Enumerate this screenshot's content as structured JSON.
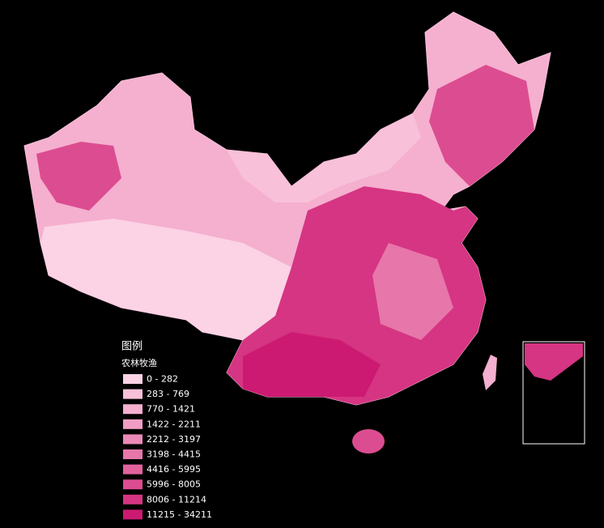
{
  "legend": {
    "title": "图例",
    "subtitle": "农林牧渔",
    "classes": [
      {
        "label": "0 - 282",
        "color": "#fbd3e5"
      },
      {
        "label": "283 - 769",
        "color": "#f8c0d9"
      },
      {
        "label": "770 - 1421",
        "color": "#f5afcf"
      },
      {
        "label": "1422 - 2211",
        "color": "#f19dc3"
      },
      {
        "label": "2212 - 3197",
        "color": "#ec8ab7"
      },
      {
        "label": "3198 - 4415",
        "color": "#e776aa"
      },
      {
        "label": "4416 - 5995",
        "color": "#e2629e"
      },
      {
        "label": "5996 - 8005",
        "color": "#dc4c90"
      },
      {
        "label": "8006 - 11214",
        "color": "#d53582"
      },
      {
        "label": "11215 - 34211",
        "color": "#cc1a72"
      }
    ]
  }
}
